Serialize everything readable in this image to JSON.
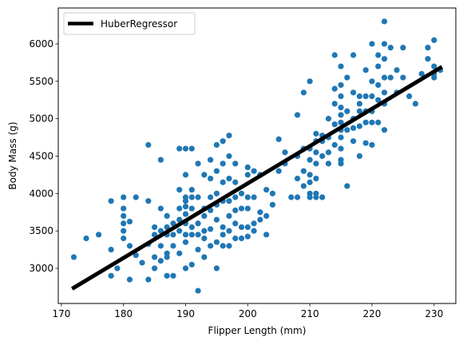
{
  "chart_data": {
    "type": "scatter",
    "xlabel": "Flipper Length (mm)",
    "ylabel": "Body Mass (g)",
    "xlim": [
      169.5,
      233.5
    ],
    "ylim": [
      2530,
      6480
    ],
    "xticks": [
      170,
      180,
      190,
      200,
      210,
      220,
      230
    ],
    "yticks": [
      3000,
      3500,
      4000,
      4500,
      5000,
      5500,
      6000
    ],
    "grid": false,
    "legend_position": "top-left",
    "series": [
      {
        "kind": "scatter",
        "color": "#1f77b4",
        "points": [
          [
            172,
            3150
          ],
          [
            174,
            3400
          ],
          [
            176,
            3450
          ],
          [
            178,
            3900
          ],
          [
            178,
            3250
          ],
          [
            178,
            2900
          ],
          [
            179,
            3000
          ],
          [
            180,
            3950
          ],
          [
            180,
            3800
          ],
          [
            180,
            3700
          ],
          [
            180,
            3600
          ],
          [
            180,
            3500
          ],
          [
            180,
            3400
          ],
          [
            181,
            3625
          ],
          [
            181,
            3300
          ],
          [
            181,
            2850
          ],
          [
            182,
            3950
          ],
          [
            182,
            3175
          ],
          [
            183,
            3075
          ],
          [
            184,
            4650
          ],
          [
            184,
            3900
          ],
          [
            184,
            3325
          ],
          [
            184,
            2850
          ],
          [
            185,
            3550
          ],
          [
            185,
            3450
          ],
          [
            185,
            3150
          ],
          [
            185,
            3000
          ],
          [
            186,
            4450
          ],
          [
            186,
            3800
          ],
          [
            186,
            3500
          ],
          [
            186,
            3300
          ],
          [
            186,
            3100
          ],
          [
            187,
            3700
          ],
          [
            187,
            3550
          ],
          [
            187,
            3450
          ],
          [
            187,
            3200
          ],
          [
            187,
            2900
          ],
          [
            187,
            3150
          ],
          [
            188,
            3600
          ],
          [
            188,
            3300
          ],
          [
            188,
            2900
          ],
          [
            188,
            3450
          ],
          [
            189,
            4600
          ],
          [
            189,
            4050
          ],
          [
            189,
            3800
          ],
          [
            189,
            3650
          ],
          [
            189,
            3500
          ],
          [
            189,
            3200
          ],
          [
            190,
            4600
          ],
          [
            190,
            4250
          ],
          [
            190,
            3950
          ],
          [
            190,
            3900
          ],
          [
            190,
            3725
          ],
          [
            190,
            3600
          ],
          [
            190,
            3450
          ],
          [
            190,
            3350
          ],
          [
            190,
            3000
          ],
          [
            190,
            3825
          ],
          [
            191,
            4600
          ],
          [
            191,
            4050
          ],
          [
            191,
            3950
          ],
          [
            191,
            3800
          ],
          [
            191,
            3550
          ],
          [
            191,
            3450
          ],
          [
            191,
            3050
          ],
          [
            192,
            4400
          ],
          [
            192,
            3950
          ],
          [
            192,
            3600
          ],
          [
            192,
            3450
          ],
          [
            192,
            3250
          ],
          [
            192,
            2700
          ],
          [
            193,
            4250
          ],
          [
            193,
            3800
          ],
          [
            193,
            3700
          ],
          [
            193,
            3500
          ],
          [
            193,
            3400
          ],
          [
            193,
            3150
          ],
          [
            194,
            4450
          ],
          [
            194,
            4200
          ],
          [
            194,
            3950
          ],
          [
            194,
            3775
          ],
          [
            194,
            3525
          ],
          [
            194,
            3300
          ],
          [
            195,
            4650
          ],
          [
            195,
            4300
          ],
          [
            195,
            4000
          ],
          [
            195,
            3850
          ],
          [
            195,
            3650
          ],
          [
            195,
            3350
          ],
          [
            195,
            3000
          ],
          [
            196,
            4700
          ],
          [
            196,
            4400
          ],
          [
            196,
            4150
          ],
          [
            196,
            3900
          ],
          [
            196,
            3550
          ],
          [
            196,
            3450
          ],
          [
            196,
            3300
          ],
          [
            197,
            4775
          ],
          [
            197,
            4500
          ],
          [
            197,
            4200
          ],
          [
            197,
            3900
          ],
          [
            197,
            3700
          ],
          [
            197,
            3500
          ],
          [
            197,
            3300
          ],
          [
            198,
            4400
          ],
          [
            198,
            4150
          ],
          [
            198,
            3950
          ],
          [
            198,
            3775
          ],
          [
            198,
            3600
          ],
          [
            198,
            3400
          ],
          [
            199,
            4000
          ],
          [
            199,
            3800
          ],
          [
            199,
            3550
          ],
          [
            199,
            3400
          ],
          [
            200,
            4350
          ],
          [
            200,
            4250
          ],
          [
            200,
            3950
          ],
          [
            200,
            3800
          ],
          [
            200,
            3550
          ],
          [
            200,
            3425
          ],
          [
            201,
            4300
          ],
          [
            201,
            3950
          ],
          [
            201,
            3600
          ],
          [
            201,
            3500
          ],
          [
            202,
            4250
          ],
          [
            202,
            3750
          ],
          [
            202,
            3650
          ],
          [
            203,
            4050
          ],
          [
            203,
            3700
          ],
          [
            203,
            3450
          ],
          [
            204,
            4000
          ],
          [
            204,
            3850
          ],
          [
            205,
            4725
          ],
          [
            205,
            4300
          ],
          [
            206,
            4550
          ],
          [
            206,
            4400
          ],
          [
            207,
            3950
          ],
          [
            208,
            5050
          ],
          [
            208,
            4500
          ],
          [
            208,
            4200
          ],
          [
            208,
            3950
          ],
          [
            209,
            5350
          ],
          [
            209,
            4600
          ],
          [
            209,
            4300
          ],
          [
            209,
            4100
          ],
          [
            210,
            5500
          ],
          [
            210,
            4600
          ],
          [
            210,
            4450
          ],
          [
            210,
            4250
          ],
          [
            210,
            4000
          ],
          [
            210,
            3950
          ],
          [
            210,
            4150
          ],
          [
            211,
            4800
          ],
          [
            211,
            4700
          ],
          [
            211,
            4550
          ],
          [
            211,
            4400
          ],
          [
            211,
            4200
          ],
          [
            211,
            4000
          ],
          [
            211,
            3950
          ],
          [
            212,
            4775
          ],
          [
            212,
            4700
          ],
          [
            212,
            4500
          ],
          [
            212,
            3950
          ],
          [
            213,
            5000
          ],
          [
            213,
            4550
          ],
          [
            213,
            4400
          ],
          [
            213,
            4750
          ],
          [
            214,
            5850
          ],
          [
            214,
            5400
          ],
          [
            214,
            5200
          ],
          [
            214,
            4925
          ],
          [
            214,
            4650
          ],
          [
            215,
            5700
          ],
          [
            215,
            5450
          ],
          [
            215,
            5300
          ],
          [
            215,
            5150
          ],
          [
            215,
            5050
          ],
          [
            215,
            4950
          ],
          [
            215,
            4850
          ],
          [
            215,
            4750
          ],
          [
            215,
            4600
          ],
          [
            215,
            4450
          ],
          [
            215,
            4400
          ],
          [
            216,
            5550
          ],
          [
            216,
            5100
          ],
          [
            216,
            4850
          ],
          [
            216,
            4100
          ],
          [
            217,
            5850
          ],
          [
            217,
            5350
          ],
          [
            217,
            5000
          ],
          [
            217,
            4875
          ],
          [
            217,
            4700
          ],
          [
            218,
            5300
          ],
          [
            218,
            5200
          ],
          [
            218,
            5100
          ],
          [
            218,
            4900
          ],
          [
            218,
            4500
          ],
          [
            219,
            5650
          ],
          [
            219,
            5300
          ],
          [
            219,
            5100
          ],
          [
            219,
            4950
          ],
          [
            219,
            4675
          ],
          [
            220,
            6000
          ],
          [
            220,
            5500
          ],
          [
            220,
            5300
          ],
          [
            220,
            5100
          ],
          [
            220,
            4950
          ],
          [
            220,
            4650
          ],
          [
            221,
            5850
          ],
          [
            221,
            5700
          ],
          [
            221,
            5450
          ],
          [
            221,
            5250
          ],
          [
            221,
            4950
          ],
          [
            222,
            6300
          ],
          [
            222,
            6000
          ],
          [
            222,
            5800
          ],
          [
            222,
            5550
          ],
          [
            222,
            5350
          ],
          [
            222,
            5200
          ],
          [
            222,
            4850
          ],
          [
            223,
            5950
          ],
          [
            223,
            5550
          ],
          [
            224,
            5650
          ],
          [
            224,
            5350
          ],
          [
            225,
            5950
          ],
          [
            225,
            5550
          ],
          [
            226,
            5300
          ],
          [
            227,
            5200
          ],
          [
            228,
            5600
          ],
          [
            229,
            5950
          ],
          [
            229,
            5800
          ],
          [
            230,
            6050
          ],
          [
            230,
            5700
          ],
          [
            230,
            5600
          ],
          [
            230,
            5550
          ],
          [
            231,
            5650
          ]
        ]
      },
      {
        "kind": "line",
        "name": "HuberRegressor",
        "color": "#000000",
        "points": [
          [
            172,
            2740
          ],
          [
            231,
            5680
          ]
        ]
      }
    ]
  }
}
